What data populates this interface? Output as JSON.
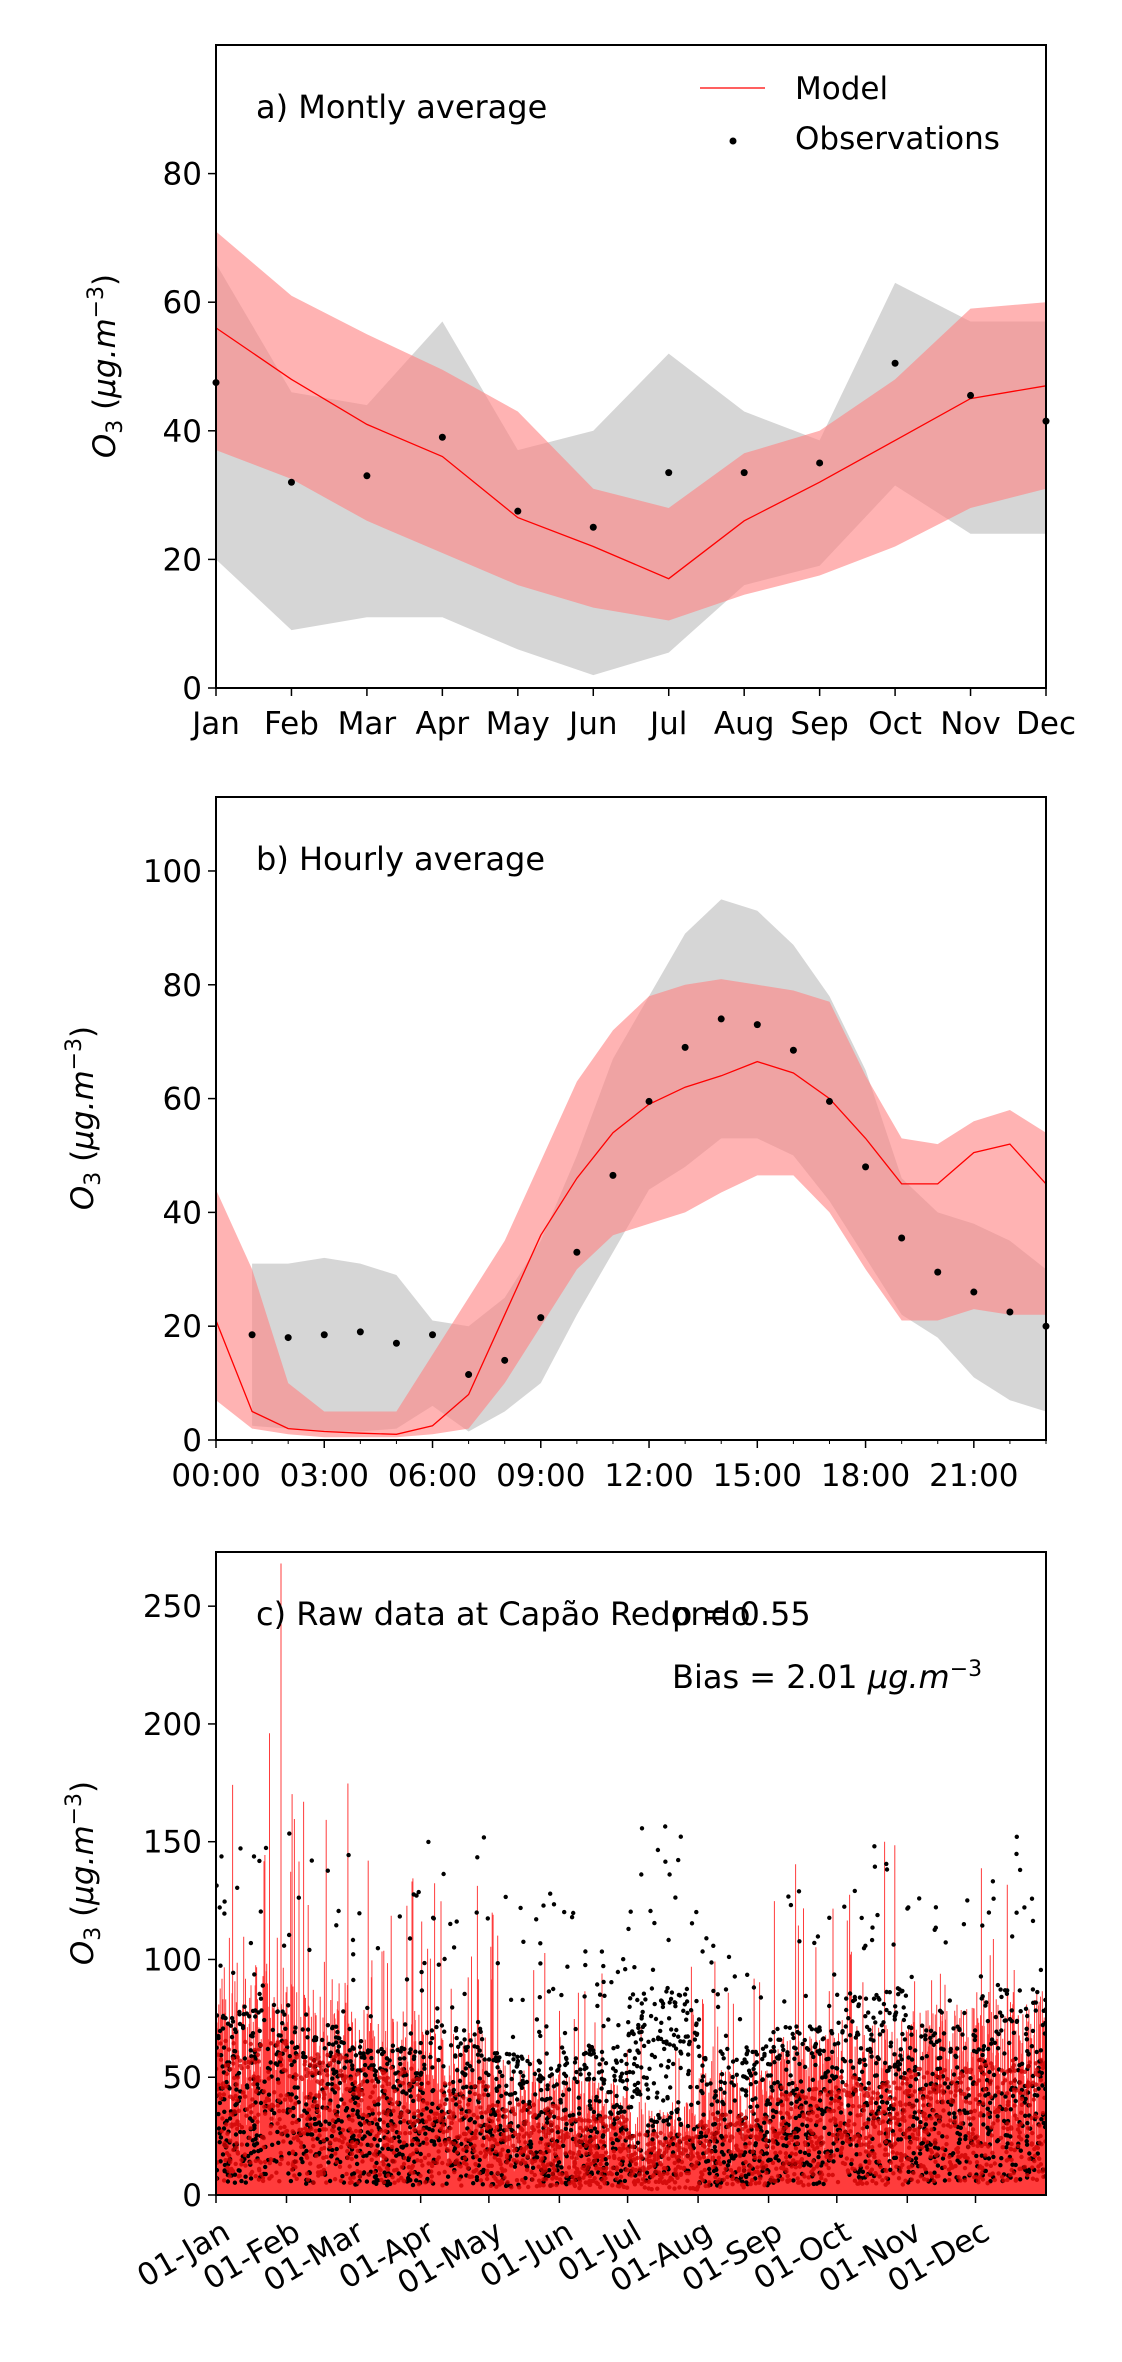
{
  "chart_data": [
    {
      "type": "line",
      "title": "a) Montly average",
      "xlabel": "",
      "ylabel": "O3 (µg.m⁻³)",
      "ylim": [
        0,
        100
      ],
      "categories": [
        "Jan",
        "Feb",
        "Mar",
        "Apr",
        "May",
        "Jun",
        "Jul",
        "Aug",
        "Sep",
        "Oct",
        "Nov",
        "Dec"
      ],
      "yticks": [
        "0",
        "20",
        "40",
        "60",
        "80"
      ],
      "legend": {
        "placement": "top-right",
        "entries": [
          "Model",
          "Observations"
        ]
      },
      "series": [
        {
          "name": "Model",
          "kind": "line",
          "color": "#ff0000",
          "values": [
            56,
            48,
            41,
            36,
            26.5,
            22,
            17,
            26,
            32,
            38.5,
            45,
            47
          ],
          "band_low": [
            37,
            32.5,
            26,
            21,
            16,
            12.5,
            10.5,
            14.5,
            17.5,
            22,
            28,
            31
          ],
          "band_high": [
            71,
            61,
            55,
            49.5,
            43,
            31,
            28,
            36.5,
            40,
            48,
            59,
            60
          ]
        },
        {
          "name": "Observations",
          "kind": "scatter",
          "color": "#000000",
          "values": [
            47.5,
            32,
            33,
            39,
            27.5,
            25,
            33.5,
            33.5,
            35,
            50.5,
            45.5,
            41.5
          ],
          "band_low": [
            20,
            9,
            11,
            11,
            6,
            2,
            5.5,
            16,
            19,
            31.5,
            24,
            24
          ],
          "band_high": [
            66,
            46,
            44,
            57,
            37,
            40,
            52,
            43,
            38.5,
            63,
            57,
            57
          ]
        }
      ]
    },
    {
      "type": "line",
      "title": "b) Hourly average",
      "xlabel": "",
      "ylabel": "O3 (µg.m⁻³)",
      "ylim": [
        0,
        113
      ],
      "x": [
        0,
        1,
        2,
        3,
        4,
        5,
        6,
        7,
        8,
        9,
        10,
        11,
        12,
        13,
        14,
        15,
        16,
        17,
        18,
        19,
        20,
        21,
        22,
        23
      ],
      "xticks": [
        "00:00",
        "03:00",
        "06:00",
        "09:00",
        "12:00",
        "15:00",
        "18:00",
        "21:00"
      ],
      "yticks": [
        "0",
        "20",
        "40",
        "60",
        "80",
        "100"
      ],
      "series": [
        {
          "name": "Model",
          "kind": "line",
          "color": "#ff0000",
          "values": [
            21,
            5,
            2,
            1.5,
            1.2,
            1,
            2.5,
            8,
            22,
            36,
            46,
            54,
            59,
            62,
            64,
            66.5,
            64.5,
            60,
            53,
            45,
            45,
            50.5,
            52,
            45
          ],
          "band_low": [
            7,
            2,
            1,
            0.5,
            0.5,
            0.5,
            1,
            2,
            10,
            20,
            30,
            36,
            38,
            40,
            43.5,
            46.5,
            46.5,
            40,
            30,
            21,
            21,
            23,
            22,
            22
          ],
          "band_high": [
            44,
            30,
            10,
            5,
            5,
            5,
            15,
            25,
            35,
            49,
            63,
            72,
            78,
            80,
            81,
            80,
            79,
            77,
            64,
            53,
            52,
            56,
            58,
            54
          ]
        },
        {
          "name": "Observations",
          "kind": "scatter",
          "color": "#000000",
          "values": [
            null,
            18.5,
            18,
            18.5,
            19,
            17,
            18.5,
            11.5,
            14,
            21.5,
            33,
            46.5,
            59.5,
            69,
            74,
            73,
            68.5,
            59.5,
            48,
            35.5,
            29.5,
            26,
            22.5,
            20
          ],
          "band_low": [
            null,
            2.5,
            2,
            1.5,
            1.5,
            2,
            6,
            1.5,
            5,
            10,
            22,
            33,
            44,
            48,
            53,
            53,
            50,
            42,
            32,
            22,
            18,
            11,
            7,
            5
          ],
          "band_high": [
            null,
            31,
            31,
            32,
            31,
            29,
            21,
            20,
            25,
            35,
            50,
            67,
            78,
            89,
            95,
            93,
            87,
            78,
            65,
            46,
            40,
            38,
            35,
            30
          ]
        }
      ]
    },
    {
      "type": "scatter",
      "title": "c) Raw data at Capão Redondo",
      "annotations": [
        "p = 0.55",
        "Bias = 2.01 µg.m⁻³"
      ],
      "xlabel": "",
      "ylabel": "O3 (µg.m⁻³)",
      "ylim": [
        0,
        273
      ],
      "xlim": [
        "01-Jan",
        "31-Dec"
      ],
      "xticks": [
        "01-Jan",
        "01-Feb",
        "01-Mar",
        "01-Apr",
        "01-May",
        "01-Jun",
        "01-Jul",
        "01-Aug",
        "01-Sep",
        "01-Oct",
        "01-Nov",
        "01-Dec"
      ],
      "yticks": [
        "0",
        "50",
        "100",
        "150",
        "200",
        "250"
      ],
      "series": [
        {
          "name": "Model",
          "kind": "line",
          "color": "#ff0000"
        },
        {
          "name": "Observations",
          "kind": "scatter",
          "color": "#000000"
        }
      ],
      "monthly_model_max": [
        270,
        180,
        145,
        140,
        125,
        95,
        100,
        100,
        145,
        160,
        120,
        140
      ],
      "monthly_model_typical": [
        55,
        50,
        45,
        40,
        32,
        28,
        22,
        30,
        38,
        42,
        45,
        48
      ],
      "monthly_obs_max": [
        150,
        155,
        130,
        160,
        130,
        125,
        160,
        120,
        135,
        160,
        130,
        155
      ],
      "monthly_obs_typical": [
        50,
        45,
        40,
        45,
        38,
        40,
        55,
        40,
        45,
        55,
        45,
        55
      ]
    }
  ]
}
